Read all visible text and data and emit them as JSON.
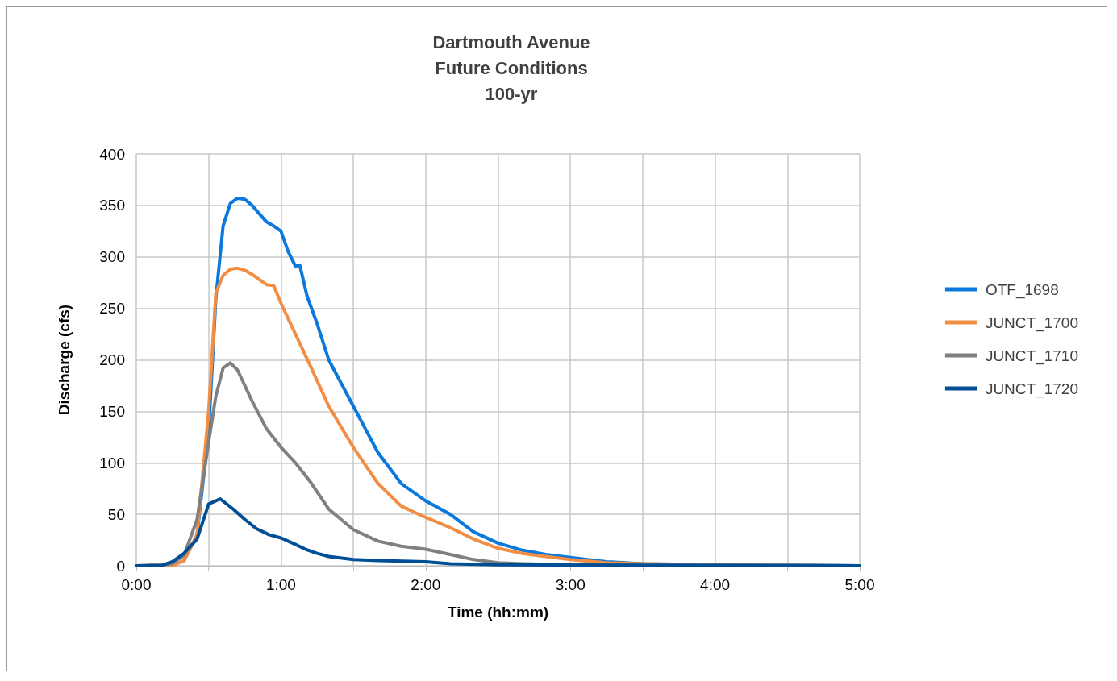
{
  "chart_data": {
    "type": "line",
    "title": "Dartmouth Avenue\nFuture Conditions\n100-yr",
    "xlabel": "Time (hh:mm)",
    "ylabel": "Discharge (cfs)",
    "xlim": [
      0,
      5
    ],
    "xticks": [
      {
        "value": 0,
        "label": "0:00"
      },
      {
        "value": 0.5,
        "label": null
      },
      {
        "value": 1,
        "label": "1:00"
      },
      {
        "value": 1.5,
        "label": null
      },
      {
        "value": 2,
        "label": "2:00"
      },
      {
        "value": 2.5,
        "label": null
      },
      {
        "value": 3,
        "label": "3:00"
      },
      {
        "value": 3.5,
        "label": null
      },
      {
        "value": 4,
        "label": "4:00"
      },
      {
        "value": 4.5,
        "label": null
      },
      {
        "value": 5,
        "label": "5:00"
      }
    ],
    "ylim": [
      0,
      400
    ],
    "yticks": [
      0,
      50,
      100,
      150,
      200,
      250,
      300,
      350,
      400
    ],
    "grid": true,
    "legend": "right",
    "marker": "none",
    "line_style": "solid",
    "series": [
      {
        "name": "OTF_1698",
        "color": "#0a78dc",
        "x": [
          0.33,
          0.42,
          0.5,
          0.55,
          0.6,
          0.65,
          0.7,
          0.75,
          0.8,
          0.85,
          0.9,
          0.95,
          1,
          1.05,
          1.1,
          1.13,
          1.18,
          1.25,
          1.33,
          1.5,
          1.67,
          1.83,
          2,
          2.17,
          2.33,
          2.5,
          2.67,
          2.83,
          3,
          3.25,
          3.5,
          4,
          5
        ],
        "values": [
          5,
          30,
          130,
          260,
          330,
          352,
          357,
          356,
          350,
          342,
          334,
          330,
          325,
          305,
          291,
          292,
          262,
          235,
          200,
          155,
          110,
          80,
          63,
          50,
          33,
          22,
          15,
          11,
          8,
          4,
          2,
          1,
          0
        ]
      },
      {
        "name": "JUNCT_1700",
        "color": "#f28e43",
        "x": [
          0,
          0.25,
          0.33,
          0.42,
          0.5,
          0.55,
          0.6,
          0.65,
          0.7,
          0.75,
          0.8,
          0.85,
          0.9,
          0.95,
          1,
          1.1,
          1.2,
          1.33,
          1.5,
          1.67,
          1.83,
          2,
          2.17,
          2.33,
          2.5,
          2.67,
          2.83,
          3,
          3.25,
          3.5,
          4,
          5
        ],
        "values": [
          0,
          0,
          5,
          30,
          150,
          265,
          282,
          288,
          289,
          287,
          283,
          278,
          273,
          272,
          255,
          225,
          195,
          155,
          115,
          80,
          58,
          47,
          37,
          26,
          17,
          12,
          9,
          6,
          3,
          2,
          1,
          0
        ]
      },
      {
        "name": "JUNCT_1710",
        "color": "#808080",
        "x": [
          0,
          0.25,
          0.33,
          0.42,
          0.5,
          0.55,
          0.6,
          0.65,
          0.7,
          0.75,
          0.8,
          0.9,
          1,
          1.1,
          1.2,
          1.33,
          1.5,
          1.67,
          1.83,
          2,
          2.17,
          2.33,
          2.5,
          2.67,
          3,
          5
        ],
        "values": [
          0,
          2,
          10,
          45,
          120,
          165,
          192,
          197,
          190,
          175,
          160,
          133,
          115,
          100,
          82,
          55,
          35,
          24,
          19,
          16,
          11,
          6,
          3,
          2,
          1,
          0
        ]
      },
      {
        "name": "JUNCT_1720",
        "color": "#004f96",
        "x": [
          0,
          0.17,
          0.25,
          0.33,
          0.42,
          0.5,
          0.58,
          0.67,
          0.75,
          0.83,
          0.92,
          1,
          1.08,
          1.17,
          1.25,
          1.33,
          1.5,
          1.67,
          2,
          2.17,
          2.5,
          5
        ],
        "values": [
          0,
          0,
          4,
          12,
          26,
          60,
          65,
          55,
          45,
          36,
          30,
          27,
          22,
          16,
          12,
          9,
          6,
          5,
          4,
          2,
          1,
          0
        ]
      }
    ]
  }
}
